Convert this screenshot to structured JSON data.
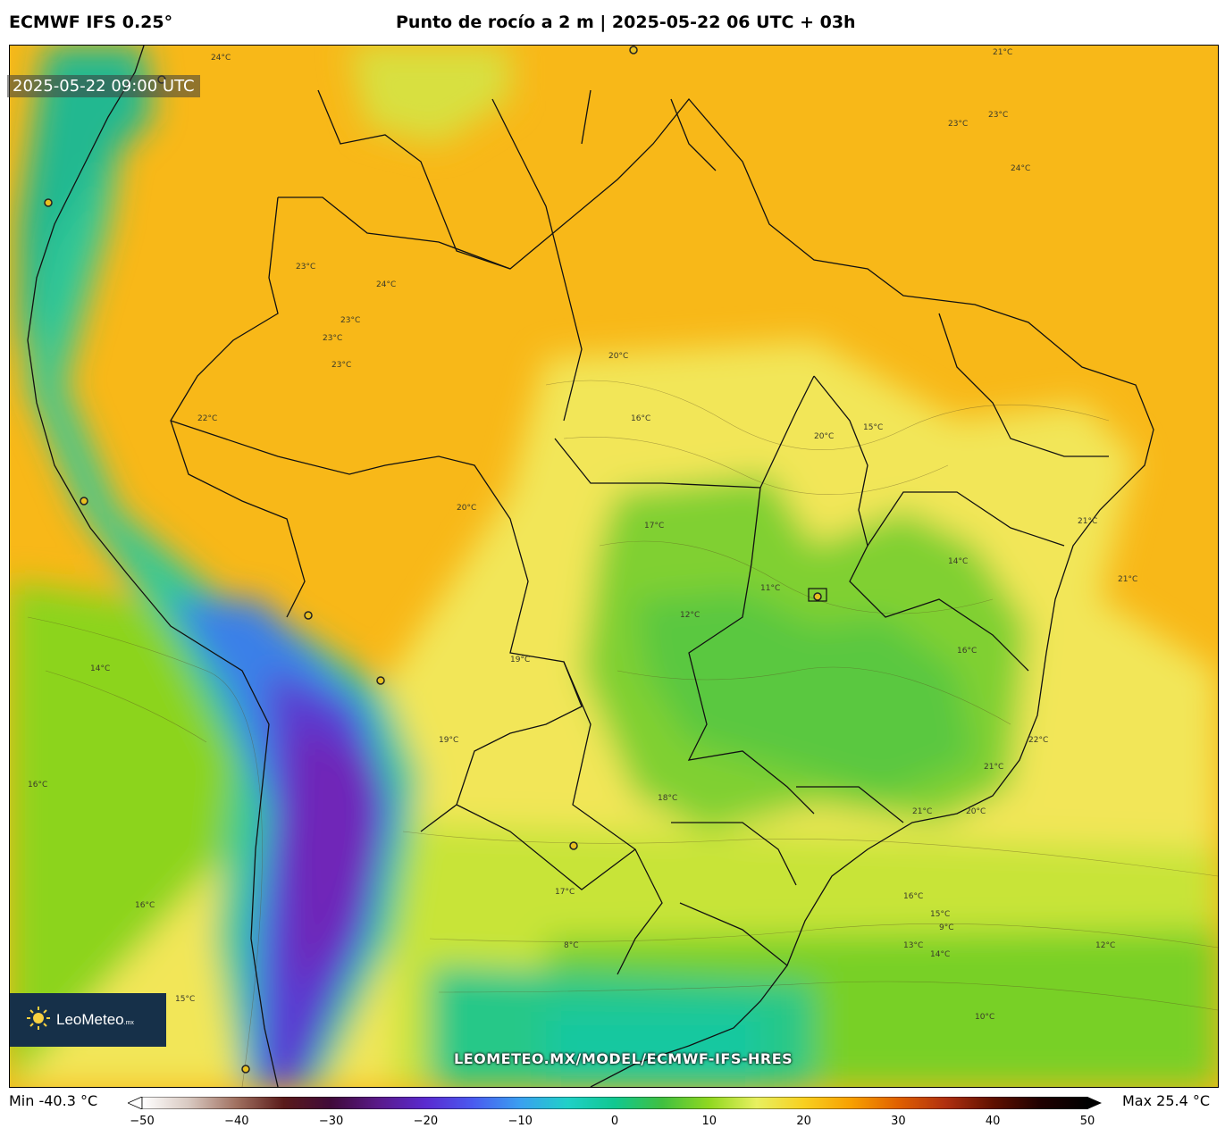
{
  "header": {
    "model": "ECMWF IFS 0.25°",
    "title": "Punto de rocío a 2 m | 2025-05-22 06 UTC + 03h"
  },
  "map": {
    "valid_time": "2025-05-22 09:00 UTC",
    "watermark_url": "LEOMETEO.MX/MODEL/ECMWF-IFS-HRES",
    "logo_text": "LeoMeteo",
    "logo_suffix": ".mx",
    "contour_labels": [
      "24°C",
      "23°C",
      "23°C",
      "24°C",
      "23°C",
      "22°C",
      "23°C",
      "21°C",
      "20°C",
      "16°C",
      "17°C",
      "20°C",
      "20°C",
      "15°C",
      "14°C",
      "11°C",
      "12°C",
      "16°C",
      "21°C",
      "21°C",
      "22°C",
      "21°C",
      "20°C",
      "21°C",
      "16°C",
      "15°C",
      "13°C",
      "14°C",
      "12°C",
      "10°C",
      "9°C",
      "8°C",
      "16°C",
      "15°C",
      "14°C",
      "16°C",
      "17°C",
      "18°C",
      "19°C",
      "19°C",
      "23°C",
      "23°C",
      "24°C"
    ]
  },
  "colorbar": {
    "min_label": "Min -40.3 °C",
    "max_label": "Max 25.4 °C",
    "ticks": [
      "−50",
      "−40",
      "−30",
      "−20",
      "−10",
      "0",
      "10",
      "20",
      "30",
      "40",
      "50"
    ],
    "range": [
      -50,
      50
    ],
    "colors": [
      "#ffffff",
      "#d8c8c0",
      "#a07060",
      "#5a1a1a",
      "#400a3a",
      "#5a1a8a",
      "#5a2ad0",
      "#4a5af0",
      "#3aa0f0",
      "#20d0c8",
      "#10c890",
      "#40c040",
      "#90d820",
      "#e8f060",
      "#f8d020",
      "#f8a000",
      "#e06000",
      "#b03010",
      "#601000",
      "#200000",
      "#000000"
    ]
  }
}
